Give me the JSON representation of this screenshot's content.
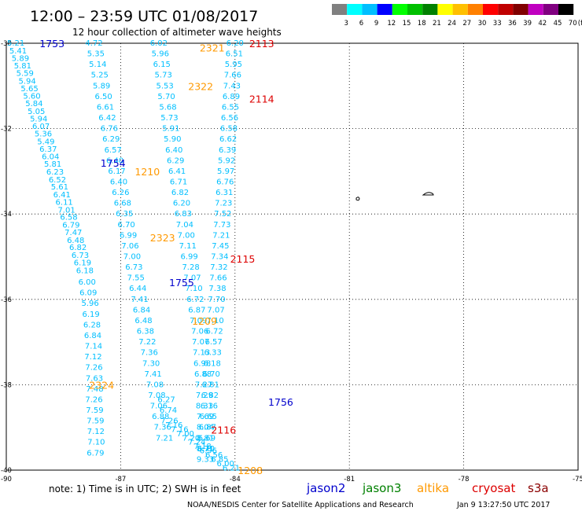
{
  "header": {
    "title": "12:00 – 23:59 UTC 01/08/2017",
    "subtitle": "12 hour collection of altimeter wave heights"
  },
  "legend_scale": {
    "unit": "(ft)",
    "ticks": [
      "3",
      "6",
      "9",
      "12",
      "15",
      "18",
      "21",
      "24",
      "27",
      "30",
      "33",
      "36",
      "39",
      "42",
      "45",
      "70"
    ],
    "colors": [
      "#808080",
      "#00ffff",
      "#00bfff",
      "#0000ff",
      "#00ff00",
      "#00c000",
      "#008000",
      "#ffff00",
      "#ffc000",
      "#ff8000",
      "#ff0000",
      "#c00000",
      "#800000",
      "#c000c0",
      "#800080",
      "#000000"
    ]
  },
  "footer": {
    "note": "note: 1) Time is in UTC; 2) SWH is in feet",
    "credit": "NOAA/NESDIS Center for Satellite Applications and Research",
    "timestamp": "Jan  9 13:27:50 UTC 2017",
    "satellites": [
      {
        "name": "jason2",
        "color": "#0000cc"
      },
      {
        "name": "jason3",
        "color": "#008000"
      },
      {
        "name": "altika",
        "color": "#ff9900"
      },
      {
        "name": "cryosat",
        "color": "#dd0000"
      },
      {
        "name": "s3a",
        "color": "#8b0000"
      }
    ]
  },
  "chart_data": {
    "type": "scatter",
    "x_ticks": [
      "-90",
      "-87",
      "-84",
      "-81",
      "-78",
      "-75"
    ],
    "y_ticks": [
      "-30",
      "-32",
      "-34",
      "-36",
      "-38",
      "-40"
    ],
    "xlim": [
      -90,
      -75
    ],
    "ylim": [
      -40,
      -30
    ],
    "grid": true,
    "value_color": "#00bfff",
    "tracks": [
      {
        "values": [
          "5.21",
          "5.41",
          "5.89",
          "5.81",
          "5.59",
          "5.94",
          "5.65",
          "5.60",
          "5.84",
          "5.05",
          "5.94",
          "6.07",
          "5.36",
          "5.49",
          "6.37",
          "6.04",
          "5.81",
          "6.23",
          "6.52",
          "5.61",
          "6.41",
          "6.11",
          "7.01",
          "6.58",
          "6.79",
          "7.47",
          "6.48",
          "6.82",
          "6.73",
          "6.19",
          "6.18",
          "6.00",
          "6.09",
          "5.96",
          "6.19",
          "6.28",
          "6.84",
          "7.14",
          "7.12",
          "7.26",
          "7.63",
          "7.48",
          "7.26",
          "7.59",
          "7.59",
          "7.12",
          "7.10",
          "6.79"
        ],
        "x": [
          -89.75,
          -89.69,
          -89.63,
          -89.57,
          -89.51,
          -89.45,
          -89.39,
          -89.33,
          -89.27,
          -89.21,
          -89.15,
          -89.09,
          -89.03,
          -88.96,
          -88.9,
          -88.84,
          -88.78,
          -88.72,
          -88.66,
          -88.6,
          -88.54,
          -88.48,
          -88.42,
          -88.36,
          -88.3,
          -88.24,
          -88.18,
          -88.12,
          -88.06,
          -88.0,
          -87.94,
          -87.88,
          -87.85,
          -87.8,
          -87.78,
          -87.75,
          -87.73,
          -87.71,
          -87.72,
          -87.7,
          -87.69,
          -87.68,
          -87.7,
          -87.68,
          -87.66,
          -87.65,
          -87.64,
          -87.66
        ],
        "y": [
          -30.0,
          -30.18,
          -30.36,
          -30.53,
          -30.71,
          -30.89,
          -31.07,
          -31.24,
          -31.42,
          -31.6,
          -31.78,
          -31.95,
          -32.13,
          -32.31,
          -32.49,
          -32.66,
          -32.84,
          -33.02,
          -33.2,
          -33.37,
          -33.55,
          -33.73,
          -33.91,
          -34.08,
          -34.26,
          -34.44,
          -34.62,
          -34.79,
          -34.97,
          -35.15,
          -35.33,
          -35.6,
          -35.85,
          -36.1,
          -36.35,
          -36.6,
          -36.85,
          -37.1,
          -37.35,
          -37.6,
          -37.85,
          -38.1,
          -38.35,
          -38.6,
          -38.85,
          -39.1,
          -39.35,
          -39.6
        ]
      },
      {
        "values": [
          "4.72",
          "5.35",
          "5.14",
          "5.25",
          "5.89",
          "6.50",
          "6.61",
          "6.42",
          "6.76",
          "6.29",
          "6.57",
          "6.40",
          "6.17",
          "6.40",
          "6.26",
          "6.68",
          "6.35",
          "6.70",
          "6.99",
          "7.06",
          "7.00",
          "6.73",
          "7.55",
          "6.44",
          "7.41",
          "6.84",
          "6.48",
          "6.38",
          "7.22",
          "7.36",
          "7.30",
          "7.41",
          "7.08",
          "7.08",
          "7.06",
          "6.88",
          "7.36",
          "7.21",
          "6.27",
          "6.74",
          "7.26",
          "7.16",
          "7.16",
          "7.00",
          "7.20",
          "7.24",
          "7.18",
          "6.96",
          "6.56",
          "6.85",
          "6.00",
          "6.21"
        ],
        "x": [
          -87.7,
          -87.65,
          -87.6,
          -87.55,
          -87.5,
          -87.45,
          -87.4,
          -87.35,
          -87.3,
          -87.25,
          -87.2,
          -87.15,
          -87.1,
          -87.05,
          -87.0,
          -86.95,
          -86.9,
          -86.85,
          -86.8,
          -86.75,
          -86.7,
          -86.65,
          -86.6,
          -86.55,
          -86.5,
          -86.45,
          -86.4,
          -86.35,
          -86.3,
          -86.25,
          -86.2,
          -86.15,
          -86.1,
          -86.05,
          -86.0,
          -85.95,
          -85.9,
          -85.85,
          -85.8,
          -85.75,
          -85.72,
          -85.6,
          -85.45,
          -85.3,
          -85.15,
          -85.0,
          -84.85,
          -84.7,
          -84.55,
          -84.4,
          -84.25,
          -84.1
        ],
        "y": [
          -30.0,
          -30.25,
          -30.5,
          -30.75,
          -31.0,
          -31.25,
          -31.5,
          -31.75,
          -32.0,
          -32.25,
          -32.5,
          -32.75,
          -33.0,
          -33.25,
          -33.5,
          -33.75,
          -34.0,
          -34.25,
          -34.5,
          -34.75,
          -35.0,
          -35.25,
          -35.5,
          -35.75,
          -36.0,
          -36.25,
          -36.5,
          -36.75,
          -37.0,
          -37.25,
          -37.5,
          -37.75,
          -38.0,
          -38.25,
          -38.5,
          -38.75,
          -39.0,
          -39.25,
          -38.35,
          -38.6,
          -38.85,
          -38.95,
          -39.05,
          -39.15,
          -39.25,
          -39.35,
          -39.45,
          -39.55,
          -39.65,
          -39.75,
          -39.85,
          -39.95
        ]
      },
      {
        "values": [
          "6.02",
          "5.96",
          "6.15",
          "5.73",
          "5.53",
          "5.70",
          "5.68",
          "5.73",
          "5.91",
          "5.90",
          "6.40",
          "6.29",
          "6.41",
          "6.71",
          "6.82",
          "6.20",
          "6.83",
          "7.04",
          "7.00",
          "7.11",
          "6.99",
          "7.28",
          "7.07",
          "7.10",
          "6.72",
          "6.87",
          "7.09",
          "7.06",
          "7.07",
          "7.13",
          "6.98",
          "6.88",
          "7.27",
          "7.29",
          "8.33",
          "7.69",
          "8.04",
          "8.81",
          "8.71",
          "9.33"
        ],
        "x": [
          -86.0,
          -85.96,
          -85.92,
          -85.88,
          -85.84,
          -85.8,
          -85.76,
          -85.72,
          -85.68,
          -85.64,
          -85.6,
          -85.56,
          -85.52,
          -85.48,
          -85.44,
          -85.4,
          -85.36,
          -85.32,
          -85.28,
          -85.24,
          -85.2,
          -85.16,
          -85.12,
          -85.08,
          -85.04,
          -85.0,
          -84.96,
          -84.92,
          -84.9,
          -84.88,
          -84.86,
          -84.84,
          -84.82,
          -84.8,
          -84.8,
          -84.78,
          -84.78,
          -84.78,
          -84.78,
          -84.78
        ],
        "y": [
          -30.0,
          -30.25,
          -30.5,
          -30.75,
          -31.0,
          -31.25,
          -31.5,
          -31.75,
          -32.0,
          -32.25,
          -32.5,
          -32.75,
          -33.0,
          -33.25,
          -33.5,
          -33.75,
          -34.0,
          -34.25,
          -34.5,
          -34.75,
          -35.0,
          -35.25,
          -35.5,
          -35.75,
          -36.0,
          -36.25,
          -36.5,
          -36.75,
          -37.0,
          -37.25,
          -37.5,
          -37.75,
          -38.0,
          -38.25,
          -38.5,
          -38.75,
          -39.0,
          -39.25,
          -39.5,
          -39.75
        ]
      },
      {
        "values": [
          "6.20",
          "6.51",
          "5.95",
          "7.66",
          "7.43",
          "6.89",
          "6.55",
          "6.56",
          "6.58",
          "6.62",
          "6.39",
          "5.92",
          "5.97",
          "6.76",
          "6.31",
          "7.23",
          "7.52",
          "7.73",
          "7.21",
          "7.45",
          "7.34",
          "7.32",
          "7.66",
          "7.38",
          "7.70",
          "7.07",
          "7.10",
          "6.72",
          "6.57",
          "6.33",
          "6.18",
          "6.70",
          "6.81",
          "6.82",
          "6.16",
          "6.65",
          "6.87",
          "6.69",
          "6.70"
        ],
        "x": [
          -84.0,
          -84.02,
          -84.04,
          -84.06,
          -84.08,
          -84.1,
          -84.12,
          -84.14,
          -84.16,
          -84.18,
          -84.2,
          -84.22,
          -84.24,
          -84.26,
          -84.28,
          -84.3,
          -84.32,
          -84.34,
          -84.36,
          -84.38,
          -84.4,
          -84.42,
          -84.44,
          -84.46,
          -84.48,
          -84.5,
          -84.52,
          -84.54,
          -84.56,
          -84.58,
          -84.6,
          -84.62,
          -84.64,
          -84.66,
          -84.68,
          -84.7,
          -84.72,
          -84.74,
          -84.76
        ],
        "y": [
          -30.0,
          -30.25,
          -30.5,
          -30.75,
          -31.0,
          -31.25,
          -31.5,
          -31.75,
          -32.0,
          -32.25,
          -32.5,
          -32.75,
          -33.0,
          -33.25,
          -33.5,
          -33.75,
          -34.0,
          -34.25,
          -34.5,
          -34.75,
          -35.0,
          -35.25,
          -35.5,
          -35.75,
          -36.0,
          -36.25,
          -36.5,
          -36.75,
          -37.0,
          -37.25,
          -37.5,
          -37.75,
          -38.0,
          -38.25,
          -38.5,
          -38.75,
          -39.0,
          -39.25,
          -39.5
        ]
      }
    ],
    "time_labels": [
      {
        "text": "1753",
        "color": "#0000cc",
        "x": -88.8,
        "y": -30.0
      },
      {
        "text": "2321",
        "color": "#ff9900",
        "x": -84.6,
        "y": -30.1
      },
      {
        "text": "2113",
        "color": "#dd0000",
        "x": -83.3,
        "y": -30.0
      },
      {
        "text": "2322",
        "color": "#ff9900",
        "x": -84.9,
        "y": -31.0
      },
      {
        "text": "2114",
        "color": "#dd0000",
        "x": -83.3,
        "y": -31.3
      },
      {
        "text": "1754",
        "color": "#0000cc",
        "x": -87.2,
        "y": -32.8
      },
      {
        "text": "1210",
        "color": "#ff9900",
        "x": -86.3,
        "y": -33.0
      },
      {
        "text": "2323",
        "color": "#ff9900",
        "x": -85.9,
        "y": -34.55
      },
      {
        "text": "2115",
        "color": "#dd0000",
        "x": -83.8,
        "y": -35.05
      },
      {
        "text": "1755",
        "color": "#0000cc",
        "x": -85.4,
        "y": -35.6
      },
      {
        "text": "1209",
        "color": "#ff9900",
        "x": -84.8,
        "y": -36.5
      },
      {
        "text": "2324",
        "color": "#ff9900",
        "x": -87.5,
        "y": -38.0
      },
      {
        "text": "1756",
        "color": "#0000cc",
        "x": -82.8,
        "y": -38.4
      },
      {
        "text": "2116",
        "color": "#dd0000",
        "x": -84.3,
        "y": -39.05
      },
      {
        "text": "1208",
        "color": "#ff9900",
        "x": -83.6,
        "y": -40.0
      }
    ]
  }
}
